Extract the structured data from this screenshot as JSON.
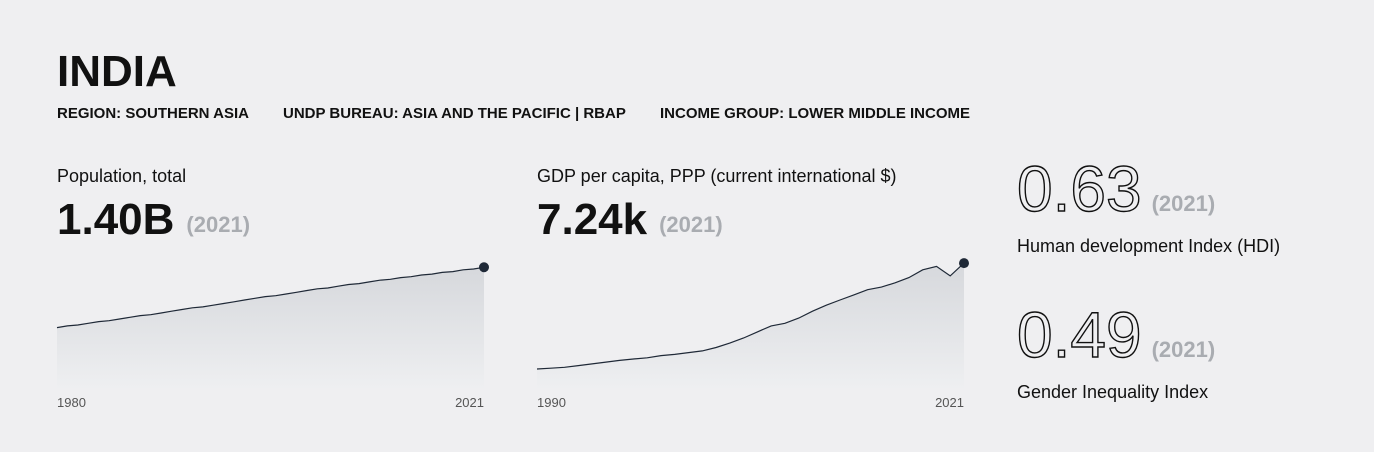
{
  "header": {
    "title": "INDIA",
    "region": "REGION: SOUTHERN ASIA",
    "bureau": "UNDP BUREAU: ASIA AND THE PACIFIC | RBAP",
    "income": "INCOME GROUP: LOWER MIDDLE INCOME"
  },
  "chart_data": [
    {
      "type": "area",
      "title": "Population, total",
      "headline": "1.40B",
      "headline_year": "(2021)",
      "color": "#1f2937",
      "x": [
        1980,
        1981,
        1982,
        1983,
        1984,
        1985,
        1986,
        1987,
        1988,
        1989,
        1990,
        1991,
        1992,
        1993,
        1994,
        1995,
        1996,
        1997,
        1998,
        1999,
        2000,
        2001,
        2002,
        2003,
        2004,
        2005,
        2006,
        2007,
        2008,
        2009,
        2010,
        2011,
        2012,
        2013,
        2014,
        2015,
        2016,
        2017,
        2018,
        2019,
        2020,
        2021
      ],
      "values": [
        0.7,
        0.72,
        0.73,
        0.75,
        0.77,
        0.78,
        0.8,
        0.82,
        0.84,
        0.85,
        0.87,
        0.89,
        0.91,
        0.93,
        0.94,
        0.96,
        0.98,
        1.0,
        1.02,
        1.04,
        1.06,
        1.07,
        1.09,
        1.11,
        1.13,
        1.15,
        1.16,
        1.18,
        1.2,
        1.21,
        1.23,
        1.25,
        1.26,
        1.28,
        1.29,
        1.31,
        1.32,
        1.34,
        1.35,
        1.37,
        1.38,
        1.4
      ],
      "xlim": [
        1980,
        2021
      ],
      "xticks": [
        1980,
        2021
      ],
      "ylim": [
        0,
        1.6
      ]
    },
    {
      "type": "area",
      "title": "GDP per capita, PPP (current international $)",
      "headline": "7.24k",
      "headline_year": "(2021)",
      "color": "#1f2937",
      "x": [
        1990,
        1991,
        1992,
        1993,
        1994,
        1995,
        1996,
        1997,
        1998,
        1999,
        2000,
        2001,
        2002,
        2003,
        2004,
        2005,
        2006,
        2007,
        2008,
        2009,
        2010,
        2011,
        2012,
        2013,
        2014,
        2015,
        2016,
        2017,
        2018,
        2019,
        2020,
        2021
      ],
      "values": [
        1.1,
        1.15,
        1.2,
        1.3,
        1.4,
        1.5,
        1.6,
        1.68,
        1.75,
        1.88,
        1.95,
        2.05,
        2.15,
        2.35,
        2.6,
        2.9,
        3.25,
        3.6,
        3.75,
        4.05,
        4.45,
        4.8,
        5.1,
        5.4,
        5.7,
        5.85,
        6.1,
        6.4,
        6.85,
        7.05,
        6.5,
        7.24
      ],
      "xlim": [
        1990,
        2021
      ],
      "xticks": [
        1990,
        2021
      ],
      "ylim": [
        0,
        8
      ]
    }
  ],
  "indices": [
    {
      "value": 0.63,
      "year": "(2021)",
      "label": "Human development Index (HDI)"
    },
    {
      "value": 0.49,
      "year": "(2021)",
      "label": "Gender Inequality Index"
    }
  ]
}
